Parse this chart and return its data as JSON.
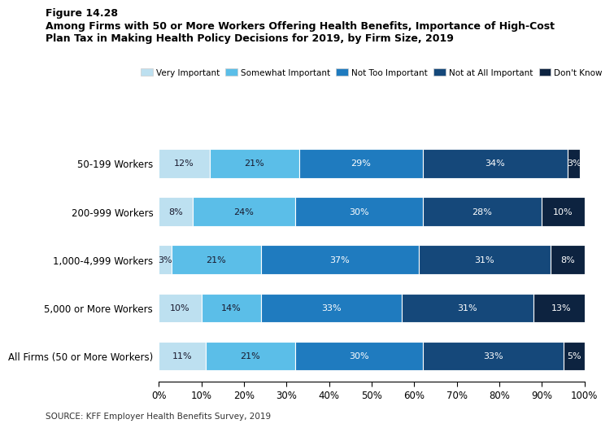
{
  "categories": [
    "50-199 Workers",
    "200-999 Workers",
    "1,000-4,999 Workers",
    "5,000 or More Workers",
    "All Firms (50 or More Workers)"
  ],
  "series": {
    "Very Important": [
      12,
      8,
      3,
      10,
      11
    ],
    "Somewhat Important": [
      21,
      24,
      21,
      14,
      21
    ],
    "Not Too Important": [
      29,
      30,
      37,
      33,
      30
    ],
    "Not at All Important": [
      34,
      28,
      31,
      31,
      33
    ],
    "Don't Know": [
      3,
      10,
      8,
      13,
      5
    ]
  },
  "colors": {
    "Very Important": "#bde0f0",
    "Somewhat Important": "#5bbee8",
    "Not Too Important": "#1f7bbf",
    "Not at All Important": "#15487a",
    "Don't Know": "#0d2340"
  },
  "figure_label": "Figure 14.28",
  "title_line1": "Among Firms with 50 or More Workers Offering Health Benefits, Importance of High-Cost",
  "title_line2": "Plan Tax in Making Health Policy Decisions for 2019, by Firm Size, 2019",
  "source": "SOURCE: KFF Employer Health Benefits Survey, 2019",
  "xlim": [
    0,
    100
  ],
  "xticks": [
    0,
    10,
    20,
    30,
    40,
    50,
    60,
    70,
    80,
    90,
    100
  ],
  "xtick_labels": [
    "0%",
    "10%",
    "20%",
    "30%",
    "40%",
    "50%",
    "60%",
    "70%",
    "80%",
    "90%",
    "100%"
  ]
}
